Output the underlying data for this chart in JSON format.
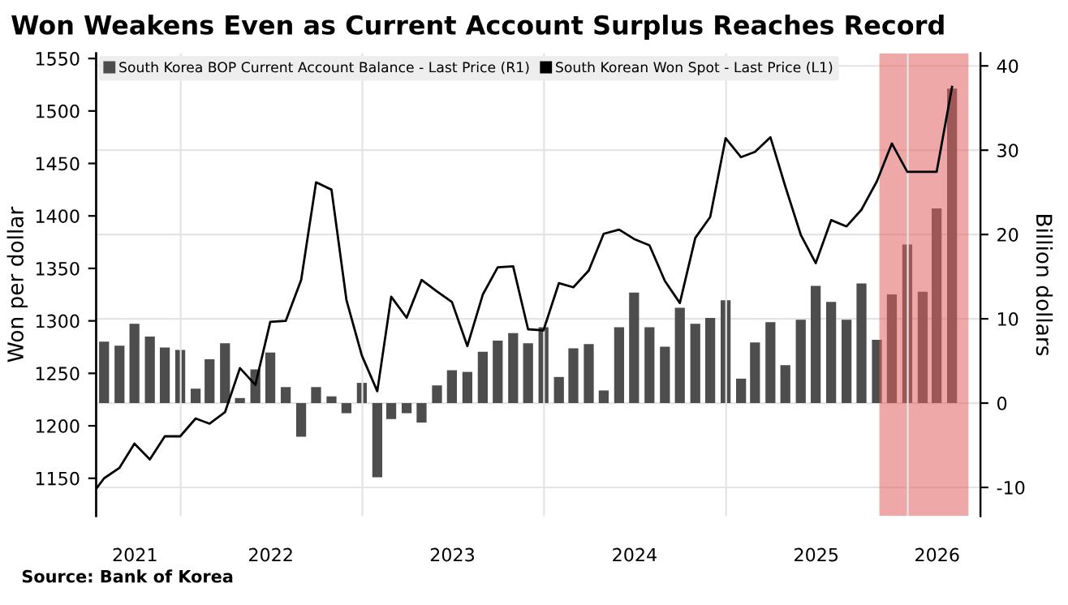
{
  "chart_data": {
    "type": "bar",
    "title": "Won Weakens Even as Current Account Surplus Reaches Record",
    "ylabel": "Won per dollar",
    "y2label": "Billion dollars",
    "x": [
      "2021-07-31",
      "2021-08-31",
      "2021-09-30",
      "2021-10-31",
      "2021-11-30",
      "2021-12-31",
      "2022-01-31",
      "2022-02-28",
      "2022-03-31",
      "2022-04-30",
      "2022-05-31",
      "2022-06-30",
      "2022-07-31",
      "2022-08-31",
      "2022-09-30",
      "2022-10-31",
      "2022-11-30",
      "2022-12-31",
      "2023-01-31",
      "2023-02-28",
      "2023-03-31",
      "2023-04-30",
      "2023-05-31",
      "2023-06-30",
      "2023-07-31",
      "2023-08-31",
      "2023-09-30",
      "2023-10-31",
      "2023-11-30",
      "2023-12-31",
      "2024-01-31",
      "2024-02-29",
      "2024-03-31",
      "2024-04-30",
      "2024-05-31",
      "2024-06-30",
      "2024-07-31",
      "2024-08-31",
      "2024-09-30",
      "2024-10-31",
      "2024-11-30",
      "2024-12-31",
      "2025-01-31",
      "2025-02-28",
      "2025-03-31",
      "2025-04-30",
      "2025-05-31",
      "2025-06-30",
      "2025-07-31",
      "2025-08-31",
      "2025-09-30",
      "2025-10-31",
      "2025-11-30",
      "2025-12-31",
      "2026-01-31",
      "2026-02-28",
      "2026-03-31"
    ],
    "series": [
      {
        "name": "South Korea BOP Current Account Balance - Last Price (R1)",
        "axis": "y2",
        "color": "#4d4d4d",
        "values": [
          7.3,
          6.8,
          9.4,
          7.9,
          6.6,
          6.3,
          1.7,
          5.2,
          7.1,
          0.6,
          4.0,
          6.0,
          1.9,
          -4.0,
          1.9,
          0.8,
          -1.2,
          2.4,
          -8.8,
          -1.9,
          -1.2,
          -2.3,
          2.1,
          3.9,
          3.7,
          6.1,
          7.4,
          8.3,
          7.1,
          9.0,
          3.1,
          6.5,
          7.0,
          1.5,
          9.0,
          13.1,
          9.0,
          6.7,
          11.3,
          9.4,
          10.1,
          12.2,
          2.9,
          7.2,
          9.6,
          4.5,
          9.9,
          13.9,
          12.0,
          9.9,
          14.2,
          7.5,
          12.9,
          18.8,
          13.2,
          23.1,
          37.3
        ]
      },
      {
        "name": "South Korean Won Spot - Last Price (L1)",
        "type": "line",
        "axis": "y",
        "color": "#000000",
        "x": [
          "2021-07-15",
          "2021-07-31",
          "2021-08-31",
          "2021-09-30",
          "2021-10-31",
          "2021-11-30",
          "2021-12-31",
          "2022-01-31",
          "2022-02-28",
          "2022-03-31",
          "2022-04-30",
          "2022-05-31",
          "2022-06-30",
          "2022-07-31",
          "2022-08-31",
          "2022-09-30",
          "2022-10-31",
          "2022-11-30",
          "2022-12-31",
          "2023-01-31",
          "2023-02-28",
          "2023-03-31",
          "2023-04-30",
          "2023-05-31",
          "2023-06-30",
          "2023-07-31",
          "2023-08-31",
          "2023-09-30",
          "2023-10-31",
          "2023-11-30",
          "2023-12-31",
          "2024-01-31",
          "2024-02-29",
          "2024-03-31",
          "2024-04-30",
          "2024-05-31",
          "2024-06-30",
          "2024-07-31",
          "2024-08-31",
          "2024-09-30",
          "2024-10-31",
          "2024-11-30",
          "2024-12-31",
          "2025-01-31",
          "2025-02-28",
          "2025-03-31",
          "2025-04-30",
          "2025-05-31",
          "2025-06-30",
          "2025-07-31",
          "2025-08-31",
          "2025-09-30",
          "2025-10-31",
          "2025-11-30",
          "2025-12-31",
          "2026-01-31",
          "2026-02-28",
          "2026-03-31"
        ],
        "values": [
          1140,
          1150,
          1160,
          1183,
          1168,
          1190,
          1190,
          1207,
          1202,
          1213,
          1255,
          1239,
          1299,
          1300,
          1339,
          1432,
          1425,
          1320,
          1267,
          1233,
          1323,
          1303,
          1339,
          1328,
          1318,
          1276,
          1325,
          1351,
          1352,
          1292,
          1291,
          1336,
          1332,
          1348,
          1383,
          1387,
          1378,
          1372,
          1338,
          1317,
          1379,
          1399,
          1474,
          1456,
          1461,
          1475,
          1428,
          1382,
          1355,
          1396,
          1390,
          1406,
          1433,
          1469,
          1442,
          1442,
          1442,
          1523
        ]
      }
    ],
    "xlim": [
      "2021-07-15",
      "2026-05-27"
    ],
    "xticks": [
      {
        "value": "2021-10-01",
        "label": "2021"
      },
      {
        "value": "2022-01-01",
        "label": null
      },
      {
        "value": "2022-07-01",
        "label": "2022"
      },
      {
        "value": "2023-01-01",
        "label": null
      },
      {
        "value": "2023-07-01",
        "label": "2023"
      },
      {
        "value": "2024-01-01",
        "label": null
      },
      {
        "value": "2024-07-01",
        "label": "2024"
      },
      {
        "value": "2025-01-01",
        "label": null
      },
      {
        "value": "2025-07-01",
        "label": "2025"
      },
      {
        "value": "2026-01-01",
        "label": null
      },
      {
        "value": "2026-03-01",
        "label": "2026"
      }
    ],
    "ylim": [
      1114,
      1555
    ],
    "yticks": [
      1150,
      1200,
      1250,
      1300,
      1350,
      1400,
      1450,
      1500,
      1550
    ],
    "y2lim": [
      -13.4,
      41.5
    ],
    "y2ticks": [
      -10,
      0,
      10,
      20,
      30,
      40
    ],
    "bands": [
      {
        "axis": "x",
        "from": "2025-11-05",
        "to": "2026-05-03",
        "color": "#e06060"
      }
    ],
    "grid": true,
    "legend": "top left",
    "annotations": [
      "Source: Bank of Korea"
    ]
  }
}
